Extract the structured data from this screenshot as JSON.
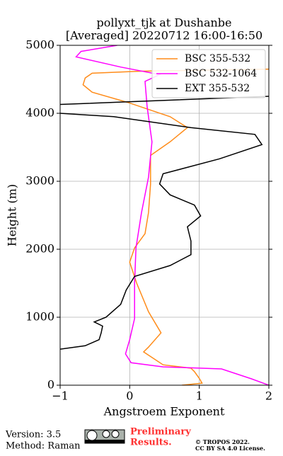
{
  "chart_data": {
    "type": "line",
    "title": "pollyxt_tjk at Dushanbe",
    "subtitle": "[Averaged] 20220712 16:00-16:50",
    "x_label": "Angstroem Exponent",
    "y_label": "Height (m)",
    "xlim": [
      -1,
      2
    ],
    "ylim": [
      0,
      5000
    ],
    "xticks": [
      {
        "value": -1,
        "label": "−1"
      },
      0,
      1,
      2
    ],
    "yticks": [
      0,
      1000,
      2000,
      3000,
      4000,
      5000
    ],
    "grid": true,
    "legend": "upper right",
    "series": [
      {
        "name": "BSC 355-532",
        "color": "#ff8c1a",
        "heights": [
          0,
          30,
          100,
          200,
          250,
          300,
          490,
          560,
          770,
          1080,
          1500,
          1810,
          2020,
          2230,
          2540,
          2960,
          3380,
          3580,
          3790,
          3950,
          4160,
          4310,
          4420,
          4520,
          4590,
          4620,
          4650
        ],
        "values": [
          0.75,
          1.04,
          1.0,
          0.93,
          0.88,
          0.48,
          0.2,
          0.27,
          0.45,
          0.27,
          0.1,
          0.0,
          0.07,
          0.22,
          0.27,
          0.3,
          0.3,
          0.58,
          0.83,
          0.58,
          -0.03,
          -0.54,
          -0.67,
          -0.64,
          -0.54,
          0.17,
          2.0
        ]
      },
      {
        "name": "BSC 532-1064",
        "color": "#ff00ff",
        "heights": [
          0,
          94,
          240,
          270,
          330,
          460,
          670,
          980,
          1500,
          2020,
          2540,
          3060,
          3580,
          4100,
          4470,
          4570,
          4680,
          4830,
          4910,
          5000
        ],
        "values": [
          2.0,
          1.75,
          1.32,
          0.48,
          0.02,
          -0.06,
          0.0,
          0.07,
          0.07,
          0.09,
          0.17,
          0.27,
          0.32,
          0.25,
          0.22,
          0.43,
          -0.13,
          -0.77,
          -0.7,
          -0.18
        ]
      },
      {
        "name": "EXT 355-532",
        "color": "#000000",
        "heights": [
          530,
          580,
          670,
          770,
          870,
          930,
          1000,
          1190,
          1400,
          1600,
          1760,
          1920,
          2120,
          2330,
          2490,
          2650,
          2800,
          2960,
          3110,
          3330,
          3540,
          3690,
          3790,
          3950,
          4000,
          4060,
          4130,
          4250
        ],
        "values": [
          -1.0,
          -0.64,
          -0.44,
          -0.41,
          -0.39,
          -0.51,
          -0.34,
          -0.13,
          -0.05,
          0.07,
          0.58,
          0.88,
          0.88,
          0.83,
          1.02,
          0.93,
          0.58,
          0.43,
          0.48,
          1.29,
          1.9,
          1.8,
          0.88,
          -0.23,
          -1.0,
          null,
          -1.0,
          2.0
        ]
      }
    ]
  },
  "footer": {
    "version": "Version: 3.5",
    "method": "Method: Raman",
    "preliminary": "Preliminary",
    "results": "Results.",
    "copyright": "© TROPOS 2022.",
    "license": "CC BY SA 4.0 License."
  }
}
